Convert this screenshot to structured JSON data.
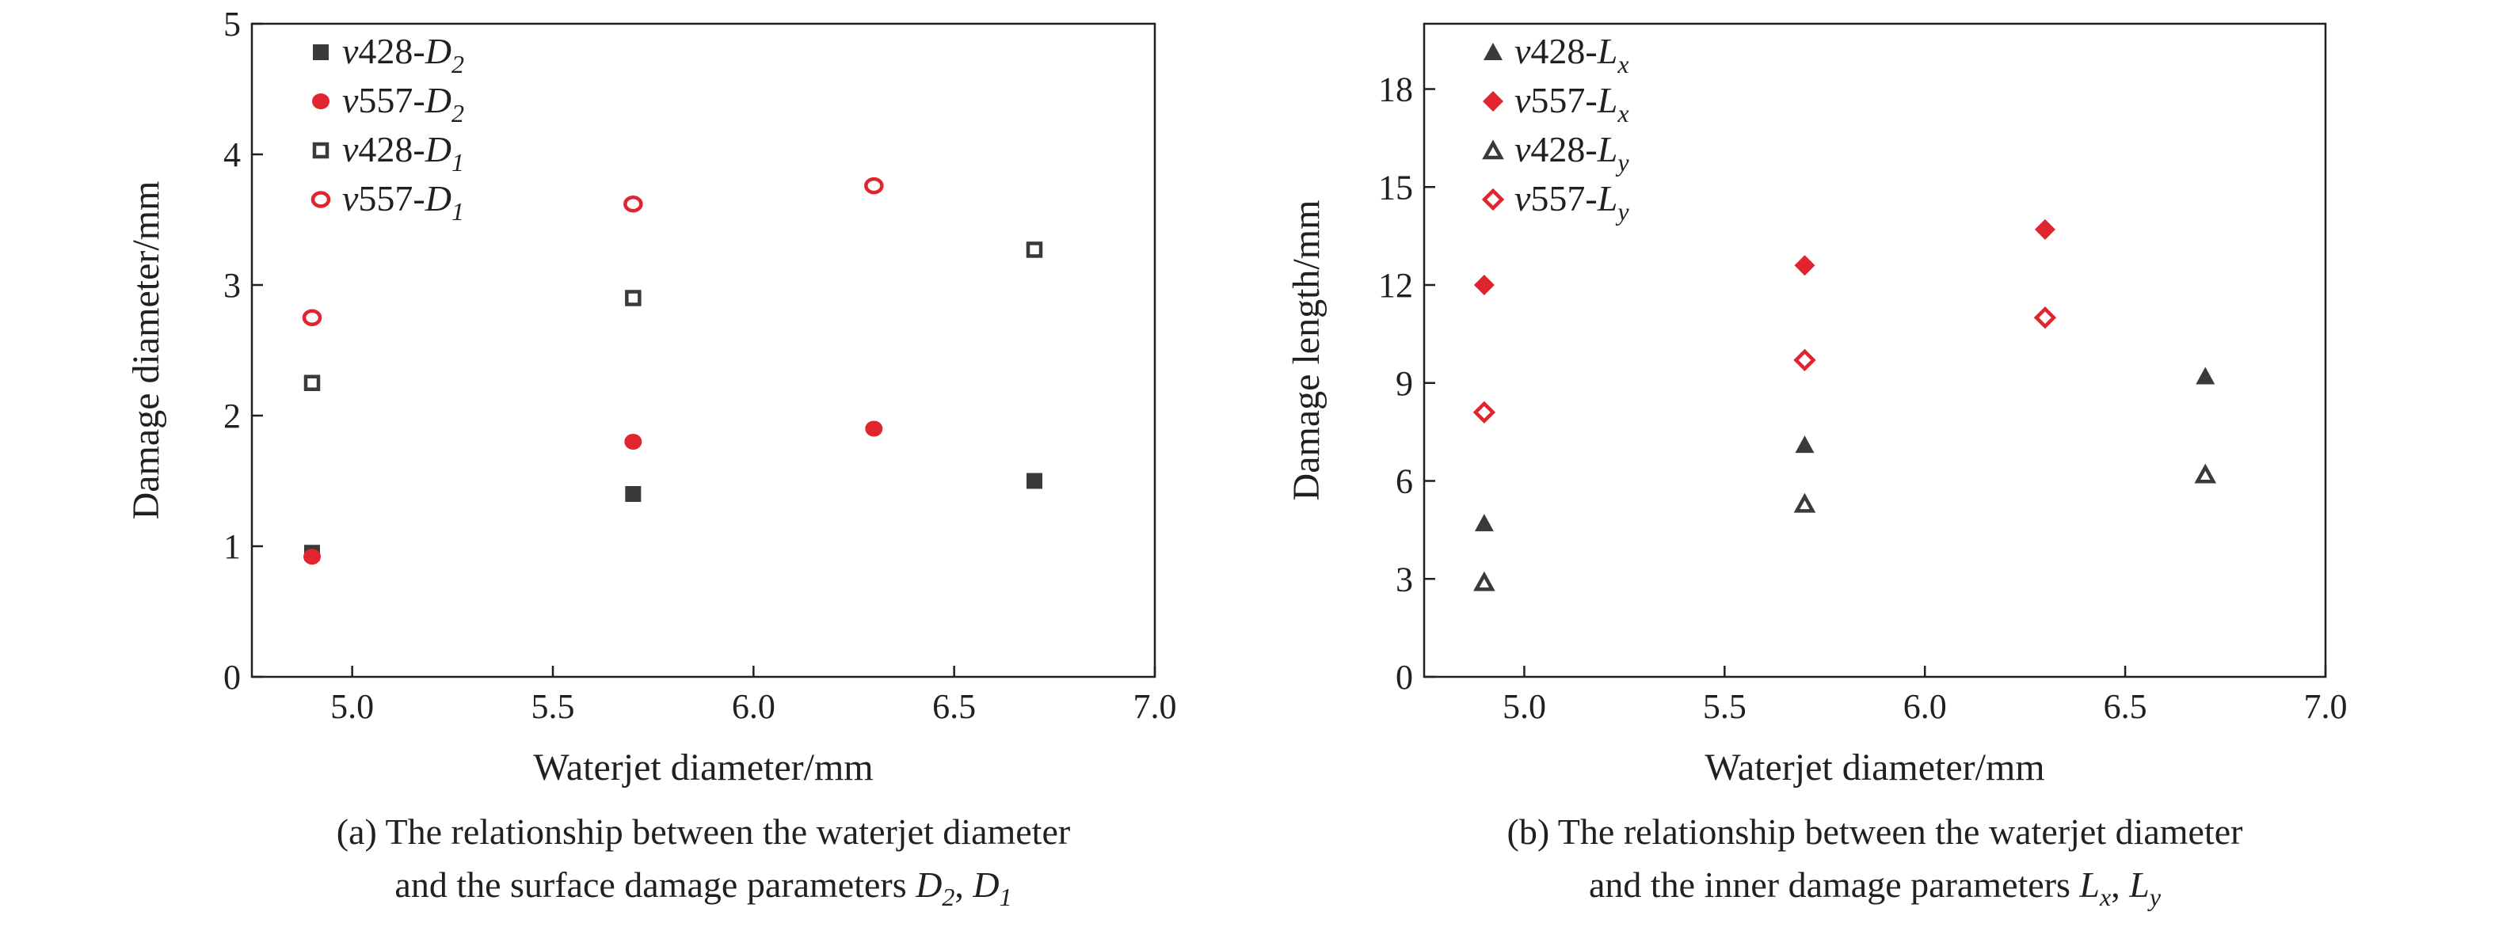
{
  "colors": {
    "black": "#3a3a3a",
    "red": "#e0252f",
    "axis": "#231f20"
  },
  "chart_data": [
    {
      "type": "scatter",
      "title": "",
      "xlabel": "Waterjet diameter/mm",
      "ylabel": "Damage diameter/mm",
      "xlim": [
        4.75,
        7.0
      ],
      "ylim": [
        0,
        5
      ],
      "xticks": [
        5.0,
        5.5,
        6.0,
        6.5,
        7.0
      ],
      "xtick_labels": [
        "5.0",
        "5.5",
        "6.0",
        "6.5",
        "7.0"
      ],
      "yticks": [
        0,
        1,
        2,
        3,
        4,
        5
      ],
      "ytick_labels": [
        "0",
        "1",
        "2",
        "3",
        "4",
        "5"
      ],
      "grid": false,
      "legend_position": "top-left",
      "caption": {
        "line1": "(a) The relationship between the waterjet diameter",
        "line2_prefix": "and the surface damage parameters ",
        "sym1": "D",
        "sub1": "2",
        "sep": ", ",
        "sym2": "D",
        "sub2": "1"
      },
      "series": [
        {
          "legend_prefix": "v",
          "legend_number": "428-",
          "legend_symbol": "D",
          "legend_sub": "2",
          "marker": "square-filled",
          "color": "#3a3a3a",
          "x": [
            4.9,
            5.7,
            6.7
          ],
          "y": [
            0.95,
            1.4,
            1.5
          ]
        },
        {
          "legend_prefix": "v",
          "legend_number": "557-",
          "legend_symbol": "D",
          "legend_sub": "2",
          "marker": "circle-filled",
          "color": "#e0252f",
          "x": [
            4.9,
            5.7,
            6.3
          ],
          "y": [
            0.92,
            1.8,
            1.9
          ]
        },
        {
          "legend_prefix": "v",
          "legend_number": "428-",
          "legend_symbol": "D",
          "legend_sub": "1",
          "marker": "square-open",
          "color": "#3a3a3a",
          "x": [
            4.9,
            5.7,
            6.7
          ],
          "y": [
            2.25,
            2.9,
            3.27
          ]
        },
        {
          "legend_prefix": "v",
          "legend_number": "557-",
          "legend_symbol": "D",
          "legend_sub": "1",
          "marker": "circle-open",
          "color": "#e0252f",
          "x": [
            4.9,
            5.7,
            6.3
          ],
          "y": [
            2.75,
            3.62,
            3.76
          ]
        }
      ]
    },
    {
      "type": "scatter",
      "title": "",
      "xlabel": "Waterjet diameter/mm",
      "ylabel": "Damage length/mm",
      "xlim": [
        4.75,
        7.0
      ],
      "ylim": [
        0,
        20
      ],
      "xticks": [
        5.0,
        5.5,
        6.0,
        6.5,
        7.0
      ],
      "xtick_labels": [
        "5.0",
        "5.5",
        "6.0",
        "6.5",
        "7.0"
      ],
      "yticks": [
        0,
        3,
        6,
        9,
        12,
        15,
        18
      ],
      "ytick_labels": [
        "0",
        "3",
        "6",
        "9",
        "12",
        "15",
        "18"
      ],
      "grid": false,
      "legend_position": "top-left",
      "caption": {
        "line1": "(b) The relationship between the waterjet diameter",
        "line2_prefix": "and the inner damage parameters ",
        "sym1": "L",
        "sub1": "x",
        "sep": ", ",
        "sym2": "L",
        "sub2": "y"
      },
      "series": [
        {
          "legend_prefix": "v",
          "legend_number": "428-",
          "legend_symbol": "L",
          "legend_sub": "x",
          "marker": "triangle-filled",
          "color": "#3a3a3a",
          "x": [
            4.9,
            5.7,
            6.7
          ],
          "y": [
            4.7,
            7.1,
            9.2
          ]
        },
        {
          "legend_prefix": "v",
          "legend_number": "557-",
          "legend_symbol": "L",
          "legend_sub": "x",
          "marker": "diamond-filled",
          "color": "#e0252f",
          "x": [
            4.9,
            5.7,
            6.3
          ],
          "y": [
            12.0,
            12.6,
            13.7
          ]
        },
        {
          "legend_prefix": "v",
          "legend_number": "428-",
          "legend_symbol": "L",
          "legend_sub": "y",
          "marker": "triangle-open",
          "color": "#3a3a3a",
          "x": [
            4.9,
            5.7,
            6.7
          ],
          "y": [
            2.9,
            5.3,
            6.2
          ]
        },
        {
          "legend_prefix": "v",
          "legend_number": "557-",
          "legend_symbol": "L",
          "legend_sub": "y",
          "marker": "diamond-open",
          "color": "#e0252f",
          "x": [
            4.9,
            5.7,
            6.3
          ],
          "y": [
            8.1,
            9.7,
            11.0
          ]
        }
      ]
    }
  ]
}
